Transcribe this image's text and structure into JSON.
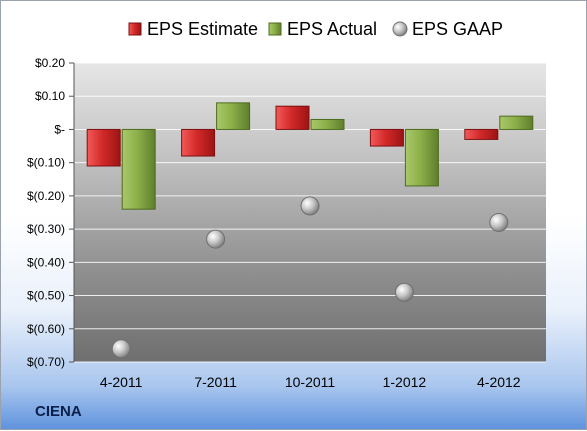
{
  "company": "CIENA",
  "colors": {
    "estimate": "#d42a2a",
    "actual": "#8db04a",
    "gaap": "#b8b8b8"
  },
  "chart_data": {
    "type": "bar",
    "categories": [
      "4-2011",
      "7-2011",
      "10-2011",
      "1-2012",
      "4-2012"
    ],
    "series": [
      {
        "name": "EPS Estimate",
        "type": "bar",
        "values": [
          -0.11,
          -0.08,
          0.07,
          -0.05,
          -0.03
        ]
      },
      {
        "name": "EPS Actual",
        "type": "bar",
        "values": [
          -0.24,
          0.08,
          0.03,
          -0.17,
          0.04
        ]
      },
      {
        "name": "EPS GAAP",
        "type": "scatter",
        "values": [
          -0.66,
          -0.33,
          -0.23,
          -0.49,
          -0.28
        ]
      }
    ],
    "ylim": [
      -0.7,
      0.2
    ],
    "yticks": [
      0.2,
      0.1,
      0,
      -0.1,
      -0.2,
      -0.3,
      -0.4,
      -0.5,
      -0.6,
      -0.7
    ],
    "ytick_labels": [
      "$0.20",
      "$0.10",
      "$-",
      "$(0.10)",
      "$(0.20)",
      "$(0.30)",
      "$(0.40)",
      "$(0.50)",
      "$(0.60)",
      "$(0.70)"
    ],
    "grid": true,
    "legend": "top"
  }
}
